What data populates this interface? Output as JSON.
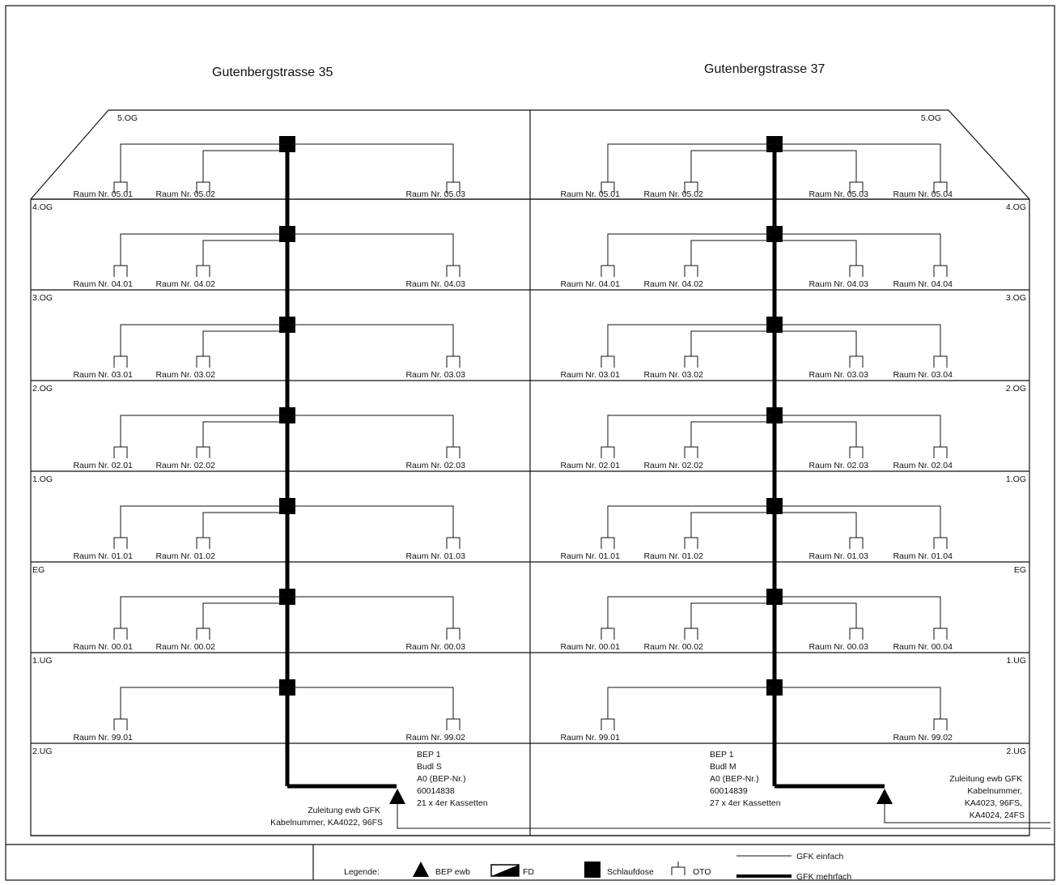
{
  "buildings": [
    {
      "title": "Gutenbergstrasse 35",
      "floors": [
        {
          "label": "5.OG",
          "rooms": [
            "Raum Nr. 05.01",
            "Raum Nr. 05.02",
            "Raum Nr. 05.03"
          ]
        },
        {
          "label": "4.OG",
          "rooms": [
            "Raum Nr. 04.01",
            "Raum Nr. 04.02",
            "Raum Nr. 04.03"
          ]
        },
        {
          "label": "3.OG",
          "rooms": [
            "Raum Nr. 03.01",
            "Raum Nr. 03.02",
            "Raum Nr. 03.03"
          ]
        },
        {
          "label": "2.OG",
          "rooms": [
            "Raum Nr. 02.01",
            "Raum Nr. 02.02",
            "Raum Nr. 02.03"
          ]
        },
        {
          "label": "1.OG",
          "rooms": [
            "Raum Nr. 01.01",
            "Raum Nr. 01.02",
            "Raum Nr. 01.03"
          ]
        },
        {
          "label": "EG",
          "rooms": [
            "Raum Nr. 00.01",
            "Raum Nr. 00.02",
            "Raum Nr. 00.03"
          ]
        },
        {
          "label": "1.UG",
          "rooms": [
            "Raum Nr. 99.01",
            "Raum Nr. 99.02"
          ]
        },
        {
          "label": "2.UG",
          "rooms": []
        }
      ],
      "bep_info": [
        "BEP 1",
        "Budl S",
        "A0 (BEP-Nr.)",
        "60014838",
        "21 x 4er Kassetten"
      ],
      "feed_info": [
        "Zuleitung ewb GFK",
        "Kabelnummer, KA4022, 96FS"
      ]
    },
    {
      "title": "Gutenbergstrasse 37",
      "floors": [
        {
          "label": "5.OG",
          "rooms": [
            "Raum Nr. 05.01",
            "Raum Nr. 05.02",
            "Raum Nr. 05.03",
            "Raum Nr. 05.04"
          ]
        },
        {
          "label": "4.OG",
          "rooms": [
            "Raum Nr. 04.01",
            "Raum Nr. 04.02",
            "Raum Nr. 04.03",
            "Raum Nr. 04.04"
          ]
        },
        {
          "label": "3.OG",
          "rooms": [
            "Raum Nr. 03.01",
            "Raum Nr. 03.02",
            "Raum Nr. 03.03",
            "Raum Nr. 03.04"
          ]
        },
        {
          "label": "2.OG",
          "rooms": [
            "Raum Nr. 02.01",
            "Raum Nr. 02.02",
            "Raum Nr. 02.03",
            "Raum Nr. 02.04"
          ]
        },
        {
          "label": "1.OG",
          "rooms": [
            "Raum Nr. 01.01",
            "Raum Nr. 01.02",
            "Raum Nr. 01.03",
            "Raum Nr. 01.04"
          ]
        },
        {
          "label": "EG",
          "rooms": [
            "Raum Nr. 00.01",
            "Raum Nr. 00.02",
            "Raum Nr. 00.03",
            "Raum Nr. 00.04"
          ]
        },
        {
          "label": "1.UG",
          "rooms": [
            "Raum Nr. 99.01",
            "Raum Nr. 99.02"
          ]
        },
        {
          "label": "2.UG",
          "rooms": []
        }
      ],
      "bep_info": [
        "BEP 1",
        "Budl M",
        "A0 (BEP-Nr.)",
        "60014839",
        "27 x 4er Kassetten"
      ],
      "feed_info": [
        "Zuleitung ewb GFK",
        "Kabelnummer,",
        "KA4023, 96FS,",
        "KA4024, 24FS"
      ]
    }
  ],
  "legend": {
    "title": "Legende:",
    "bep": "BEP ewb",
    "fd": "FD",
    "schlaufdose": "Schlaufdose",
    "oto": "OTO",
    "gfk_single": "GFK einfach",
    "gfk_multi": "GFK mehrfach"
  }
}
